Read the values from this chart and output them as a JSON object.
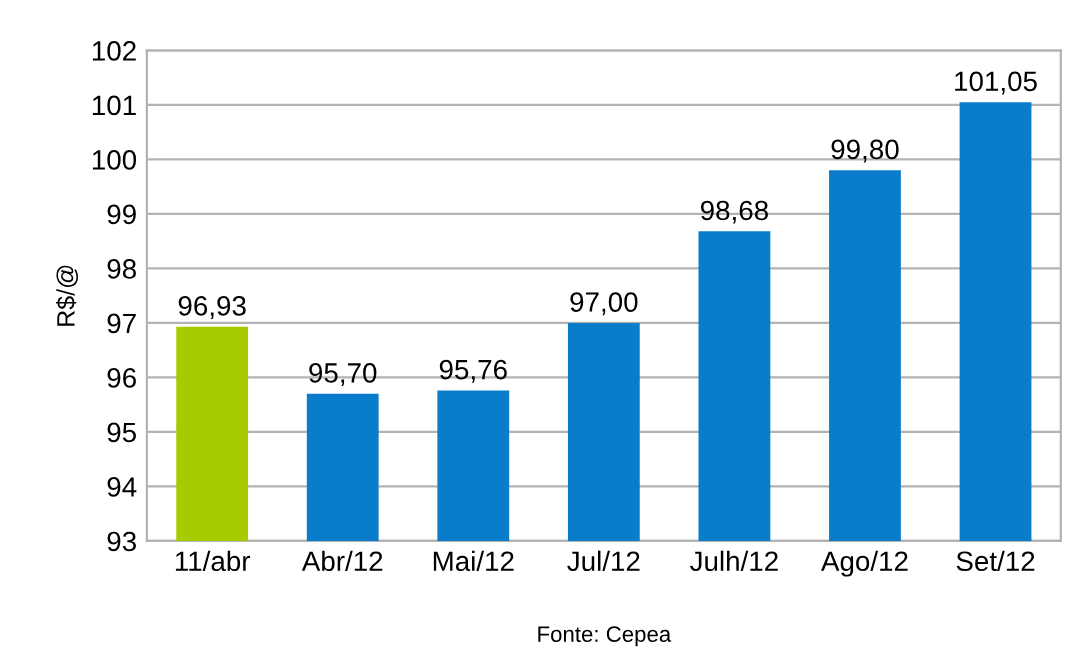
{
  "chart_data": {
    "type": "bar",
    "categories": [
      "11/abr",
      "Abr/12",
      "Mai/12",
      "Jul/12",
      "Julh/12",
      "Ago/12",
      "Set/12"
    ],
    "values": [
      96.93,
      95.7,
      95.76,
      97.0,
      98.68,
      99.8,
      101.05
    ],
    "value_labels": [
      "96,93",
      "95,70",
      "95,76",
      "97,00",
      "98,68",
      "99,80",
      "101,05"
    ],
    "colors": [
      "#a6cc00",
      "#0a7ccc",
      "#0a7ccc",
      "#0a7ccc",
      "#0a7ccc",
      "#0a7ccc",
      "#0a7ccc"
    ],
    "ylabel": "R$/@",
    "ylim": [
      93,
      102
    ],
    "yticks": [
      93,
      94,
      95,
      96,
      97,
      98,
      99,
      100,
      101,
      102
    ],
    "grid": "y",
    "annotations": [
      "Fonte: Cepea"
    ]
  }
}
